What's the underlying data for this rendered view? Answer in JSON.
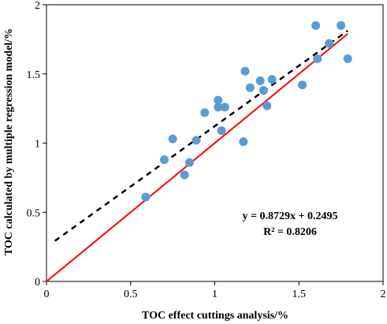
{
  "chart_data": {
    "type": "scatter",
    "xlabel": "TOC effect cuttings analysis/%",
    "ylabel": "TOC calculated by multiple regression model/%",
    "xlim": [
      0,
      2
    ],
    "ylim": [
      0,
      2
    ],
    "x_ticks": [
      "0",
      "0.5",
      "1",
      "1.5",
      "2"
    ],
    "y_ticks": [
      "0",
      "0.5",
      "1",
      "1.5",
      "2"
    ],
    "grid": false,
    "series": [
      {
        "marker_color": "#5b9bd5",
        "points": [
          {
            "x": 0.59,
            "y": 0.61
          },
          {
            "x": 0.7,
            "y": 0.88
          },
          {
            "x": 0.75,
            "y": 1.03
          },
          {
            "x": 0.82,
            "y": 0.77
          },
          {
            "x": 0.85,
            "y": 0.86
          },
          {
            "x": 0.89,
            "y": 1.02
          },
          {
            "x": 0.94,
            "y": 1.22
          },
          {
            "x": 1.02,
            "y": 1.31
          },
          {
            "x": 1.02,
            "y": 1.26
          },
          {
            "x": 1.04,
            "y": 1.09
          },
          {
            "x": 1.06,
            "y": 1.26
          },
          {
            "x": 1.17,
            "y": 1.01
          },
          {
            "x": 1.18,
            "y": 1.52
          },
          {
            "x": 1.21,
            "y": 1.4
          },
          {
            "x": 1.27,
            "y": 1.45
          },
          {
            "x": 1.29,
            "y": 1.38
          },
          {
            "x": 1.31,
            "y": 1.27
          },
          {
            "x": 1.34,
            "y": 1.46
          },
          {
            "x": 1.52,
            "y": 1.42
          },
          {
            "x": 1.6,
            "y": 1.85
          },
          {
            "x": 1.61,
            "y": 1.61
          },
          {
            "x": 1.68,
            "y": 1.72
          },
          {
            "x": 1.75,
            "y": 1.85
          },
          {
            "x": 1.79,
            "y": 1.61
          }
        ]
      }
    ],
    "trendline": {
      "slope": 0.8729,
      "intercept": 0.2495,
      "x_from": 0.05,
      "x_to": 1.79,
      "color": "#000000",
      "style": "dashed"
    },
    "identity_line": {
      "x_from": 0,
      "x_to": 1.79,
      "color": "#ff0000"
    },
    "annotation": {
      "equation": "y = 0.8729x + 0.2495",
      "r_squared": "R² = 0.8206"
    }
  }
}
